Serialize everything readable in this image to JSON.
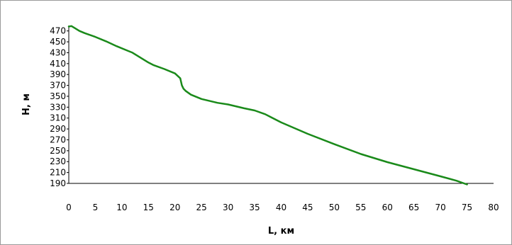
{
  "chart_data": {
    "type": "line",
    "title": "",
    "xlabel": "L, км",
    "ylabel": "Н, м",
    "xlim": [
      0,
      80
    ],
    "ylim": [
      190,
      480
    ],
    "x_ticks": [
      0,
      5,
      10,
      15,
      20,
      25,
      30,
      35,
      40,
      45,
      50,
      55,
      60,
      65,
      70,
      75,
      80
    ],
    "y_ticks": [
      190,
      210,
      230,
      250,
      270,
      290,
      310,
      330,
      350,
      370,
      390,
      410,
      430,
      450,
      470
    ],
    "grid": false,
    "legend": "none",
    "series": [
      {
        "color": "#1a8a1a",
        "points": [
          [
            0,
            478
          ],
          [
            0.5,
            479
          ],
          [
            1,
            476
          ],
          [
            2,
            470
          ],
          [
            3,
            466
          ],
          [
            5,
            459
          ],
          [
            7,
            451
          ],
          [
            9,
            442
          ],
          [
            11,
            434
          ],
          [
            12,
            430
          ],
          [
            13,
            424
          ],
          [
            15,
            412
          ],
          [
            16,
            407
          ],
          [
            18,
            400
          ],
          [
            20,
            392
          ],
          [
            21,
            383
          ],
          [
            21.3,
            370
          ],
          [
            21.6,
            364
          ],
          [
            22,
            360
          ],
          [
            23,
            353
          ],
          [
            25,
            345
          ],
          [
            28,
            338
          ],
          [
            30,
            335
          ],
          [
            33,
            328
          ],
          [
            35,
            324
          ],
          [
            37,
            317
          ],
          [
            40,
            302
          ],
          [
            45,
            281
          ],
          [
            50,
            262
          ],
          [
            55,
            244
          ],
          [
            60,
            229
          ],
          [
            65,
            216
          ],
          [
            70,
            203
          ],
          [
            73,
            195
          ],
          [
            75,
            188
          ]
        ]
      }
    ]
  }
}
